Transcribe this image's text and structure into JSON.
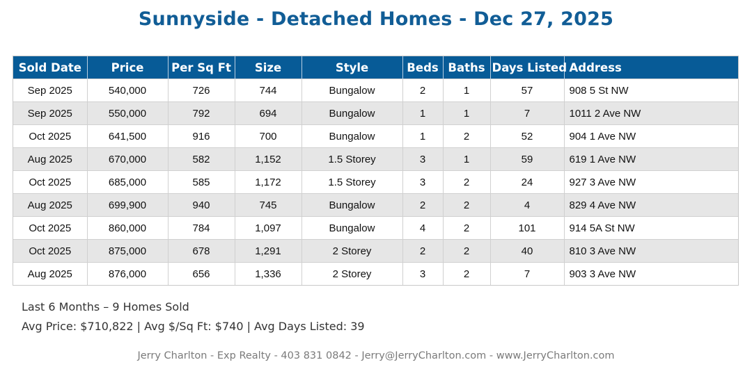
{
  "header": {
    "title": "Sunnyside - Detached Homes - Dec 27, 2025",
    "brand_color": "#075b97"
  },
  "table": {
    "columns": [
      "Sold Date",
      "Price",
      "Per Sq Ft",
      "Size",
      "Style",
      "Beds",
      "Baths",
      "Days Listed",
      "Address"
    ],
    "rows": [
      [
        "Sep 2025",
        "540,000",
        "726",
        "744",
        "Bungalow",
        "2",
        "1",
        "57",
        "908 5 St NW"
      ],
      [
        "Sep 2025",
        "550,000",
        "792",
        "694",
        "Bungalow",
        "1",
        "1",
        "7",
        "1011 2 Ave NW"
      ],
      [
        "Oct 2025",
        "641,500",
        "916",
        "700",
        "Bungalow",
        "1",
        "2",
        "52",
        "904 1 Ave NW"
      ],
      [
        "Aug 2025",
        "670,000",
        "582",
        "1,152",
        "1.5 Storey",
        "3",
        "1",
        "59",
        "619 1 Ave NW"
      ],
      [
        "Oct 2025",
        "685,000",
        "585",
        "1,172",
        "1.5 Storey",
        "3",
        "2",
        "24",
        "927 3 Ave NW"
      ],
      [
        "Aug 2025",
        "699,900",
        "940",
        "745",
        "Bungalow",
        "2",
        "2",
        "4",
        "829 4 Ave NW"
      ],
      [
        "Oct 2025",
        "860,000",
        "784",
        "1,097",
        "Bungalow",
        "4",
        "2",
        "101",
        "914 5A St NW"
      ],
      [
        "Oct 2025",
        "875,000",
        "678",
        "1,291",
        "2 Storey",
        "2",
        "2",
        "40",
        "810 3 Ave NW"
      ],
      [
        "Aug 2025",
        "876,000",
        "656",
        "1,336",
        "2 Storey",
        "3",
        "2",
        "7",
        "903 3 Ave NW"
      ]
    ]
  },
  "summary": {
    "line1": "Last 6 Months – 9 Homes Sold",
    "line2": "Avg Price: $710,822 | Avg $/Sq Ft: $740 | Avg Days Listed: 39"
  },
  "footer": {
    "contact": "Jerry Charlton - Exp Realty - 403 831 0842 - Jerry@JerryCharlton.com - www.JerryCharlton.com"
  }
}
